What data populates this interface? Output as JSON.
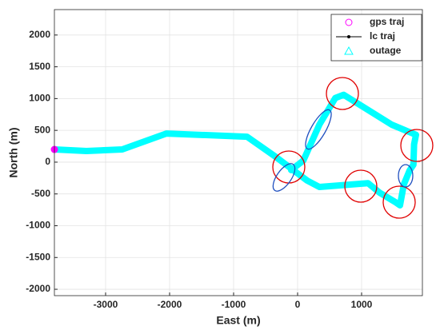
{
  "chart_data": {
    "type": "line",
    "xlabel": "East (m)",
    "ylabel": "North (m)",
    "x": [
      -3800,
      -3300,
      -2740,
      -2050,
      -790,
      -350,
      -100,
      150,
      340,
      1100,
      1280,
      1530,
      1600,
      1660,
      1750,
      1810,
      1820,
      1850,
      1470,
      720,
      590,
      340,
      90,
      -100
    ],
    "series": [
      {
        "name": "gps traj",
        "color": "#ff00ff",
        "values": [
          200,
          175,
          200,
          450,
          400,
          90,
          -100,
          -290,
          -390,
          -330,
          -480,
          -630,
          -680,
          -350,
          -130,
          -40,
          280,
          430,
          590,
          1060,
          1010,
          590,
          25,
          -125
        ]
      },
      {
        "name": "lc traj",
        "color": "#000000",
        "values": [
          200,
          175,
          200,
          450,
          400,
          90,
          -100,
          -290,
          -390,
          -330,
          -480,
          -630,
          -680,
          -350,
          -130,
          -40,
          280,
          430,
          590,
          1060,
          1010,
          590,
          25,
          -125
        ]
      },
      {
        "name": "outage",
        "color": "#00ffff",
        "values": [
          200,
          175,
          200,
          450,
          400,
          90,
          -100,
          -290,
          -390,
          -330,
          -480,
          -630,
          -680,
          -350,
          -130,
          -40,
          280,
          430,
          590,
          1060,
          1010,
          590,
          25,
          -125
        ]
      }
    ],
    "xlim": [
      -3800,
      1950
    ],
    "ylim": [
      -2100,
      2400
    ],
    "xticks": [
      -3000,
      -2000,
      -1000,
      0,
      1000
    ],
    "yticks": [
      -2000,
      -1500,
      -1000,
      -500,
      0,
      500,
      1000,
      1500,
      2000
    ],
    "grid": true,
    "legend": "top-right"
  }
}
